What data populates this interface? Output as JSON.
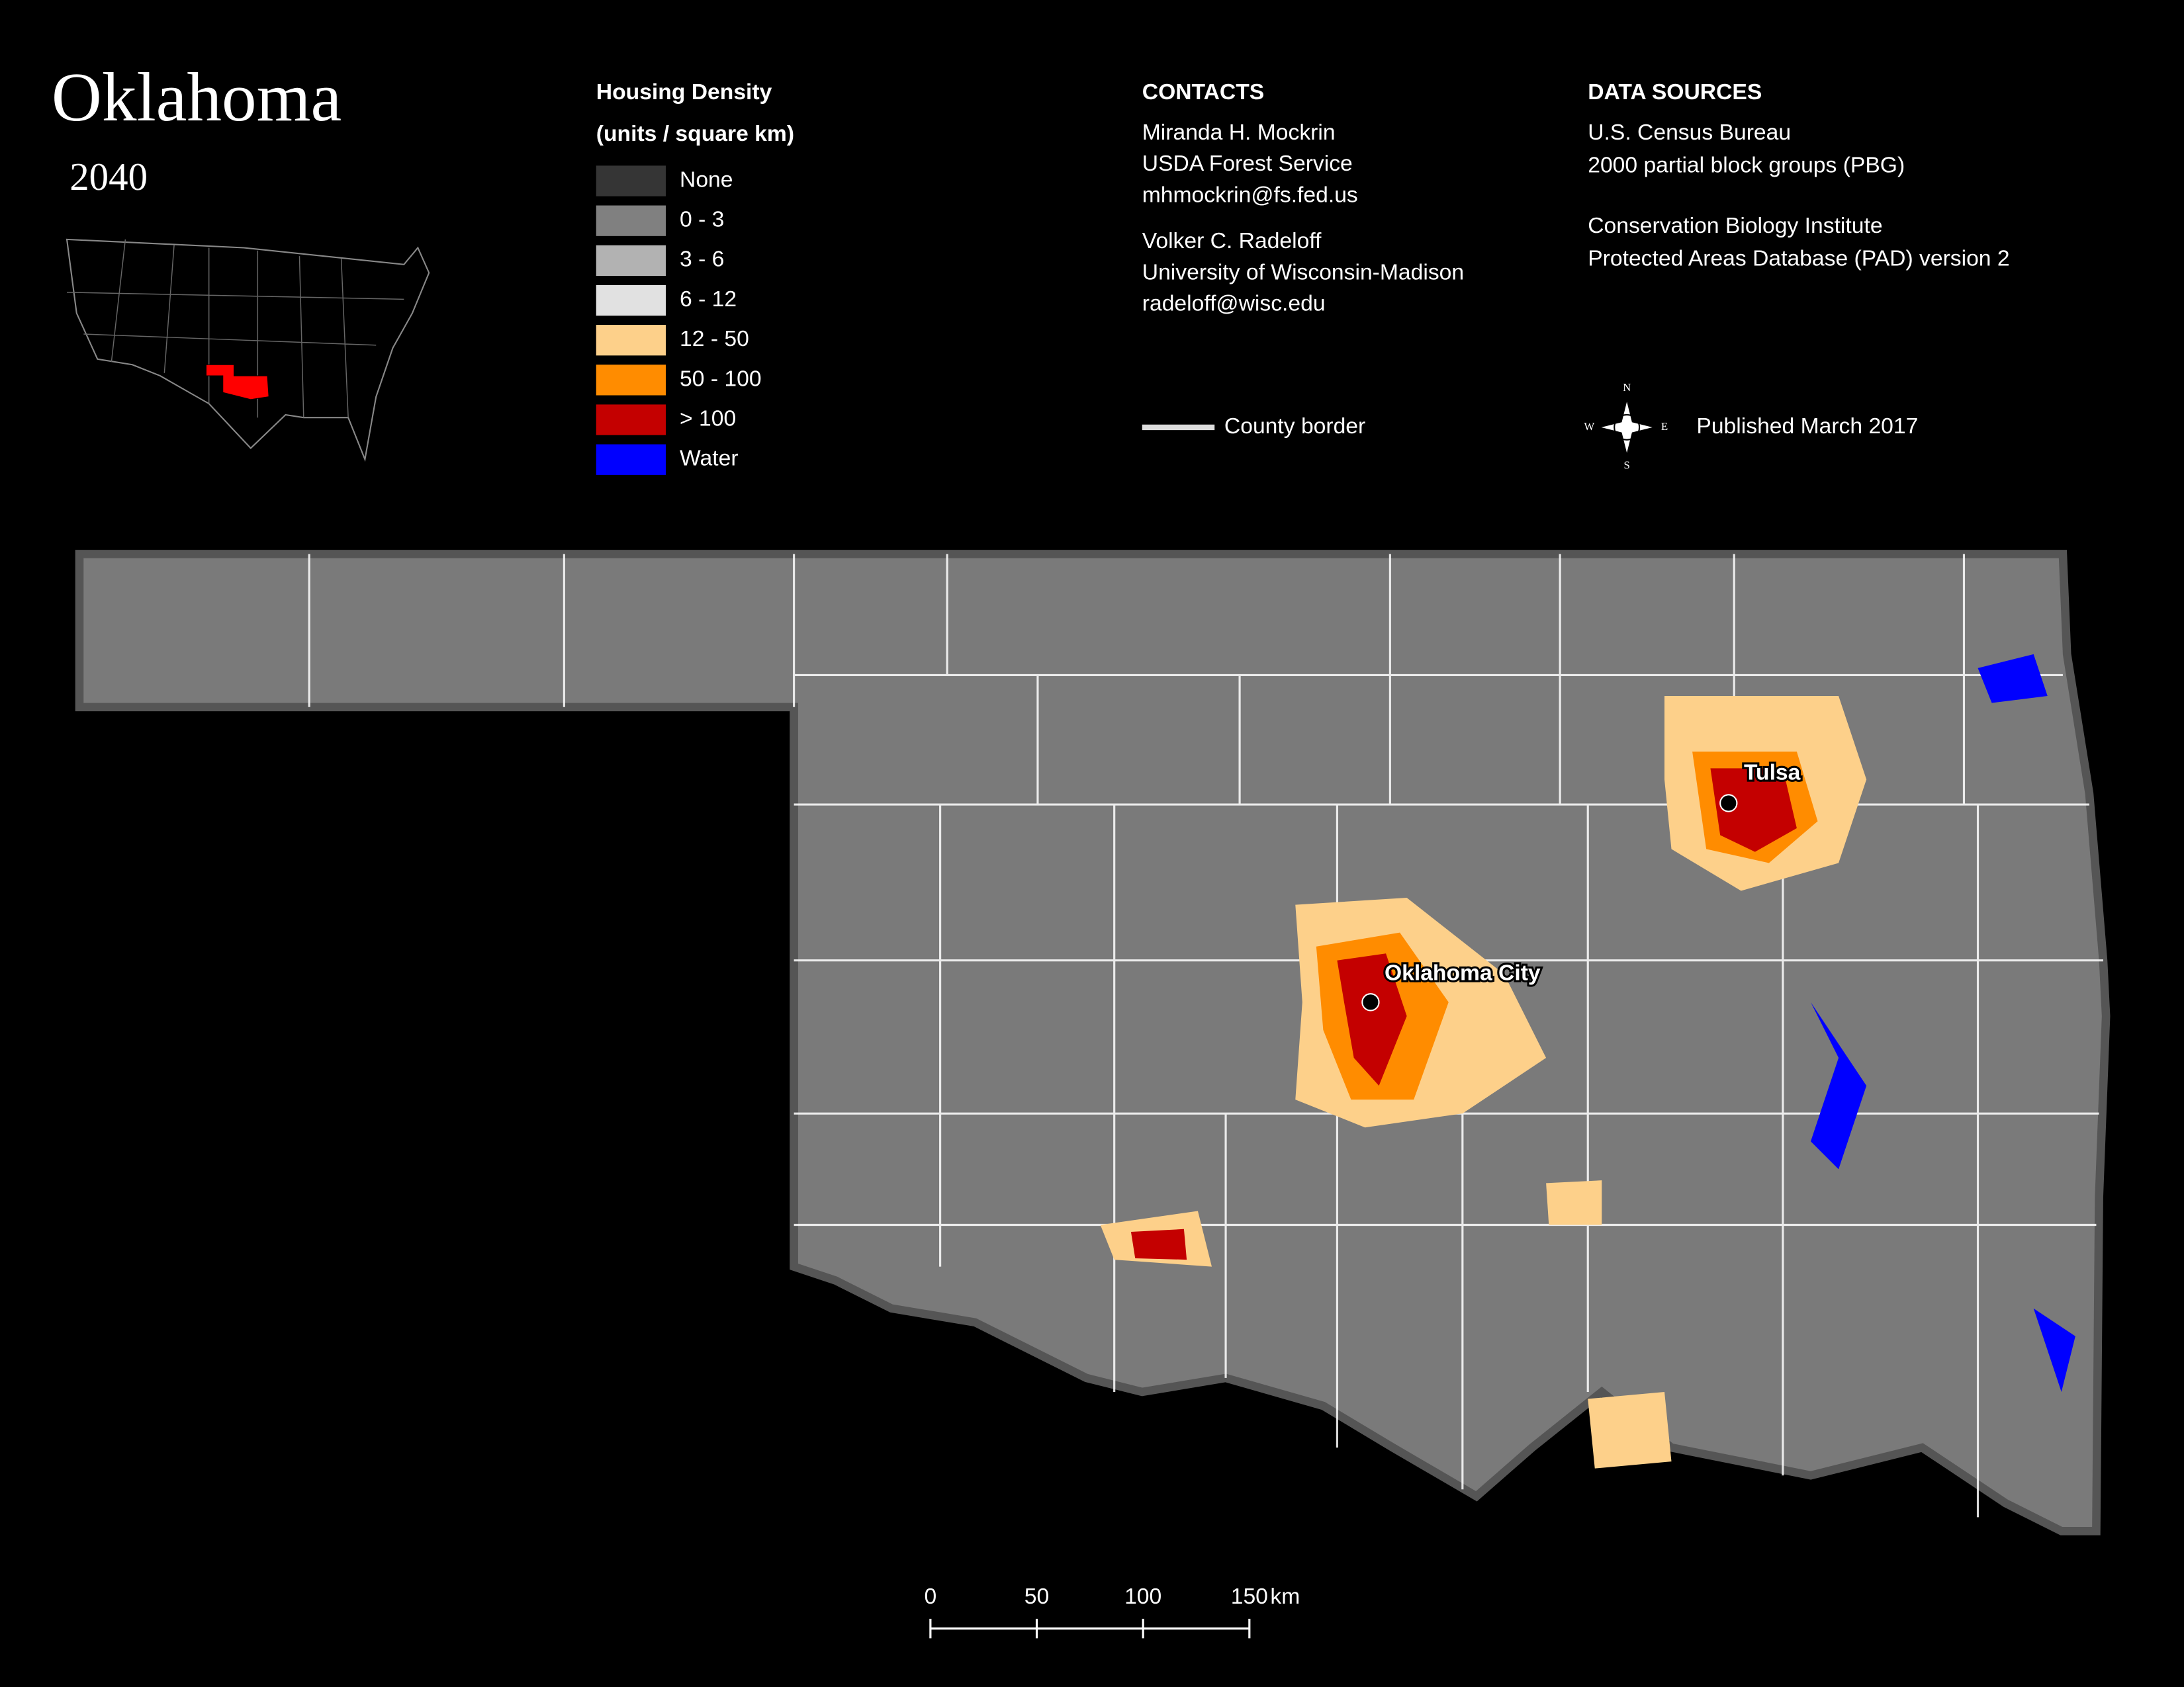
{
  "header": {
    "title": "Oklahoma",
    "year": "2040"
  },
  "legend": {
    "title": [
      "Housing Density",
      "(units / square km)"
    ],
    "items": [
      {
        "label": "None",
        "color": "#353535"
      },
      {
        "label": "0 - 3",
        "color": "#808080"
      },
      {
        "label": "3 - 6",
        "color": "#b2b2b2"
      },
      {
        "label": "6 - 12",
        "color": "#e1e1e1"
      },
      {
        "label": "12 - 50",
        "color": "#fdd08a"
      },
      {
        "label": "50 - 100",
        "color": "#ff8c00"
      },
      {
        "label": "> 100",
        "color": "#c40000"
      },
      {
        "label": "Water",
        "color": "#0000ff"
      }
    ]
  },
  "contacts": {
    "heading": "CONTACTS",
    "people": [
      [
        "Miranda H. Mockrin",
        "USDA Forest Service",
        "mhmockrin@fs.fed.us"
      ],
      [
        "Volker C. Radeloff",
        "University of Wisconsin-Madison",
        "radeloff@wisc.edu"
      ]
    ]
  },
  "data_sources": {
    "heading": "DATA SOURCES",
    "entries": [
      [
        "U.S. Census Bureau",
        "2000 partial block groups (PBG)"
      ],
      [
        "Conservation Biology Institute",
        "Protected Areas Database (PAD) version 2"
      ]
    ]
  },
  "county_border": "County border",
  "published": "Published March 2017",
  "compass": [
    "N",
    "E",
    "S",
    "W"
  ],
  "cities": [
    "Tulsa",
    "Oklahoma City"
  ],
  "scale_bar": {
    "ticks": [
      0,
      50,
      100,
      150
    ],
    "unit": "km"
  }
}
